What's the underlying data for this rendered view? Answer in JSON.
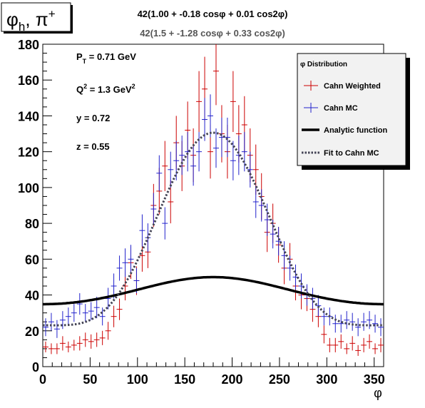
{
  "pad_label": "φh, π+",
  "pad_label_parts": {
    "main": "φ",
    "sub": "h",
    "tail": ", π",
    "sup": "+"
  },
  "formula_analytic": "42(1.00 + -0.18 cosφ + 0.01 cos2φ)",
  "formula_fit": "42(1.5 + -1.28 cosφ + 0.33 cos2φ)",
  "kinematics": [
    {
      "label": "PT = 0.71 GeV",
      "base": "P",
      "sub": "T",
      "sup": "",
      "rest": " = 0.71 GeV"
    },
    {
      "label": "Q2 = 1.3 GeV2",
      "base": "Q",
      "sub": "",
      "sup": "2",
      "rest": " = 1.3 GeV",
      "rest_sup": "2"
    },
    {
      "label": "y = 0.72",
      "base": "y",
      "sub": "",
      "sup": "",
      "rest": " = 0.72"
    },
    {
      "label": "z = 0.55",
      "base": "z",
      "sub": "",
      "sup": "",
      "rest": " = 0.55"
    }
  ],
  "legend": {
    "header": "φ Distribution",
    "entries": [
      {
        "name": "Cahn Weighted",
        "color": "#cc0000",
        "style": "error-bar"
      },
      {
        "name": "Cahn MC",
        "color": "#2222cc",
        "style": "error-bar"
      },
      {
        "name": "Analytic function",
        "color": "#000000",
        "style": "thick-line"
      },
      {
        "name": "Fit to Cahn MC",
        "color": "#444455",
        "style": "dotted-line"
      }
    ]
  },
  "chart_data": {
    "type": "line",
    "xlabel": "φ",
    "ylabel": "",
    "xlim": [
      0,
      360
    ],
    "ylim": [
      0,
      180
    ],
    "xticks": [
      0,
      50,
      100,
      150,
      200,
      250,
      300,
      350
    ],
    "yticks": [
      0,
      20,
      40,
      60,
      80,
      100,
      120,
      140,
      160,
      180
    ],
    "bins": 60,
    "bin_width": 6,
    "series": [
      {
        "name": "Cahn Weighted",
        "color": "#cc0000",
        "kind": "errorbar",
        "x": [
          3,
          9,
          15,
          21,
          27,
          33,
          39,
          45,
          51,
          57,
          63,
          69,
          75,
          81,
          87,
          93,
          99,
          105,
          111,
          117,
          123,
          129,
          135,
          141,
          147,
          153,
          159,
          165,
          171,
          177,
          183,
          189,
          195,
          201,
          207,
          213,
          219,
          225,
          231,
          237,
          243,
          249,
          255,
          261,
          267,
          273,
          279,
          285,
          291,
          297,
          303,
          309,
          315,
          321,
          327,
          333,
          339,
          345,
          351,
          357
        ],
        "y": [
          11,
          10,
          10,
          13,
          11,
          12,
          13,
          15,
          14,
          15,
          16,
          20,
          28,
          32,
          45,
          58,
          48,
          62,
          64,
          90,
          98,
          112,
          92,
          125,
          112,
          132,
          118,
          148,
          155,
          120,
          165,
          130,
          120,
          148,
          130,
          135,
          118,
          110,
          95,
          75,
          80,
          68,
          55,
          60,
          45,
          40,
          38,
          32,
          28,
          18,
          12,
          12,
          14,
          10,
          13,
          9,
          12,
          14,
          10,
          12
        ],
        "err": [
          3,
          3,
          3,
          4,
          3,
          3,
          4,
          4,
          4,
          4,
          4,
          5,
          6,
          6,
          8,
          9,
          8,
          9,
          9,
          12,
          13,
          14,
          12,
          15,
          14,
          16,
          15,
          17,
          18,
          15,
          19,
          16,
          15,
          17,
          16,
          16,
          15,
          14,
          13,
          11,
          11,
          10,
          9,
          9,
          8,
          8,
          7,
          7,
          6,
          5,
          4,
          4,
          4,
          3,
          4,
          3,
          4,
          4,
          3,
          4
        ]
      },
      {
        "name": "Cahn MC",
        "color": "#2222cc",
        "kind": "errorbar",
        "x": [
          3,
          9,
          15,
          21,
          27,
          33,
          39,
          45,
          51,
          57,
          63,
          69,
          75,
          81,
          87,
          93,
          99,
          105,
          111,
          117,
          123,
          129,
          135,
          141,
          147,
          153,
          159,
          165,
          171,
          177,
          183,
          189,
          195,
          201,
          207,
          213,
          219,
          225,
          231,
          237,
          243,
          249,
          255,
          261,
          267,
          273,
          279,
          285,
          291,
          297,
          303,
          309,
          315,
          321,
          327,
          333,
          339,
          345,
          351,
          357
        ],
        "y": [
          22,
          25,
          21,
          26,
          28,
          30,
          35,
          30,
          31,
          33,
          28,
          38,
          45,
          55,
          58,
          60,
          48,
          76,
          72,
          88,
          108,
          80,
          110,
          115,
          118,
          120,
          112,
          120,
          138,
          140,
          122,
          128,
          128,
          115,
          118,
          120,
          110,
          92,
          90,
          82,
          74,
          70,
          62,
          55,
          50,
          45,
          40,
          38,
          34,
          28,
          28,
          24,
          24,
          26,
          25,
          22,
          25,
          26,
          24,
          22
        ],
        "err": [
          5,
          5,
          5,
          5,
          5,
          5,
          6,
          5,
          5,
          6,
          5,
          6,
          7,
          7,
          8,
          8,
          7,
          9,
          8,
          9,
          10,
          9,
          10,
          11,
          11,
          11,
          11,
          11,
          12,
          12,
          11,
          11,
          11,
          11,
          11,
          11,
          10,
          9,
          9,
          9,
          8,
          8,
          8,
          7,
          7,
          7,
          6,
          6,
          6,
          5,
          5,
          5,
          5,
          5,
          5,
          5,
          5,
          5,
          5,
          5
        ]
      },
      {
        "name": "Analytic function",
        "color": "#000000",
        "kind": "curve",
        "formula": "42*(1.00 - 0.18*cos(phi) + 0.01*cos(2*phi))"
      },
      {
        "name": "Fit to Cahn MC",
        "color": "#444455",
        "kind": "curve-dotted",
        "formula": "42*(1.5 - 1.28*cos(phi) + 0.33*cos(2*phi))"
      }
    ]
  }
}
